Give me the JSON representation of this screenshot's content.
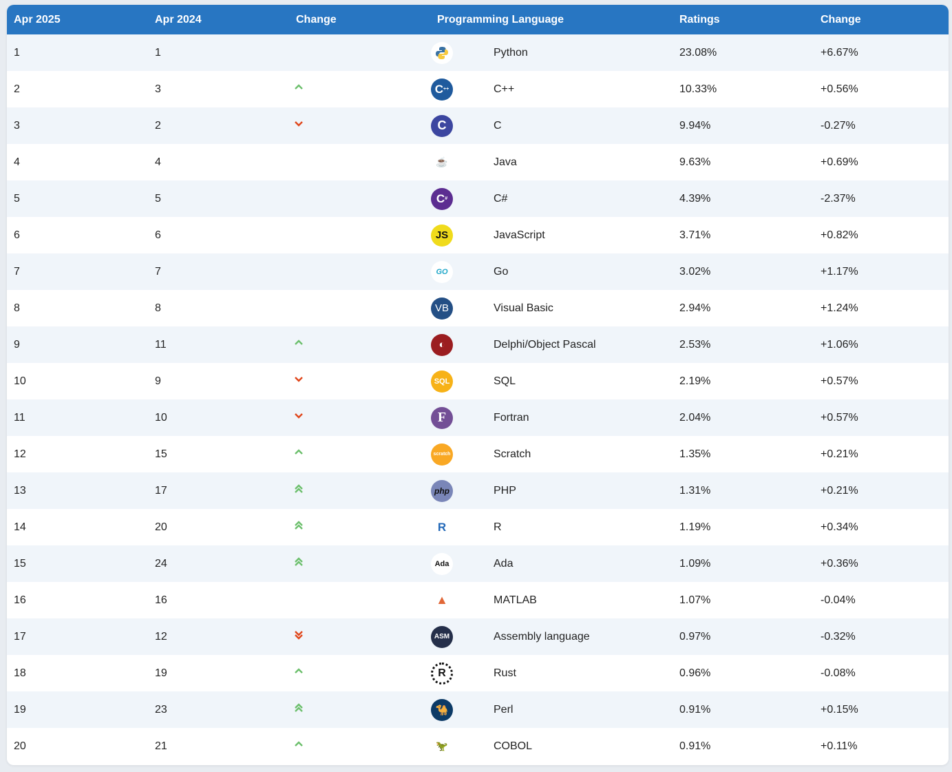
{
  "table": {
    "headers": [
      "Apr 2025",
      "Apr 2024",
      "Change",
      "Programming Language",
      "Ratings",
      "Change"
    ],
    "colors": {
      "header_bg": "#2876c2",
      "row_alt_bg": "#f0f5fa",
      "up_arrow": "#6cbf6c",
      "down_arrow": "#e0461a"
    },
    "rows": [
      {
        "rank_2025": "1",
        "rank_2024": "1",
        "trend": "none",
        "language": "Python",
        "icon": "python-icon",
        "rating": "23.08%",
        "change": "+6.67%"
      },
      {
        "rank_2025": "2",
        "rank_2024": "3",
        "trend": "up",
        "language": "C++",
        "icon": "cpp-icon",
        "rating": "10.33%",
        "change": "+0.56%"
      },
      {
        "rank_2025": "3",
        "rank_2024": "2",
        "trend": "down",
        "language": "C",
        "icon": "c-icon",
        "rating": "9.94%",
        "change": "-0.27%"
      },
      {
        "rank_2025": "4",
        "rank_2024": "4",
        "trend": "none",
        "language": "Java",
        "icon": "java-icon",
        "rating": "9.63%",
        "change": "+0.69%"
      },
      {
        "rank_2025": "5",
        "rank_2024": "5",
        "trend": "none",
        "language": "C#",
        "icon": "csharp-icon",
        "rating": "4.39%",
        "change": "-2.37%"
      },
      {
        "rank_2025": "6",
        "rank_2024": "6",
        "trend": "none",
        "language": "JavaScript",
        "icon": "javascript-icon",
        "rating": "3.71%",
        "change": "+0.82%"
      },
      {
        "rank_2025": "7",
        "rank_2024": "7",
        "trend": "none",
        "language": "Go",
        "icon": "go-icon",
        "rating": "3.02%",
        "change": "+1.17%"
      },
      {
        "rank_2025": "8",
        "rank_2024": "8",
        "trend": "none",
        "language": "Visual Basic",
        "icon": "visual-basic-icon",
        "rating": "2.94%",
        "change": "+1.24%"
      },
      {
        "rank_2025": "9",
        "rank_2024": "11",
        "trend": "up",
        "language": "Delphi/Object Pascal",
        "icon": "delphi-icon",
        "rating": "2.53%",
        "change": "+1.06%"
      },
      {
        "rank_2025": "10",
        "rank_2024": "9",
        "trend": "down",
        "language": "SQL",
        "icon": "sql-icon",
        "rating": "2.19%",
        "change": "+0.57%"
      },
      {
        "rank_2025": "11",
        "rank_2024": "10",
        "trend": "down",
        "language": "Fortran",
        "icon": "fortran-icon",
        "rating": "2.04%",
        "change": "+0.57%"
      },
      {
        "rank_2025": "12",
        "rank_2024": "15",
        "trend": "up",
        "language": "Scratch",
        "icon": "scratch-icon",
        "rating": "1.35%",
        "change": "+0.21%"
      },
      {
        "rank_2025": "13",
        "rank_2024": "17",
        "trend": "up2",
        "language": "PHP",
        "icon": "php-icon",
        "rating": "1.31%",
        "change": "+0.21%"
      },
      {
        "rank_2025": "14",
        "rank_2024": "20",
        "trend": "up2",
        "language": "R",
        "icon": "r-icon",
        "rating": "1.19%",
        "change": "+0.34%"
      },
      {
        "rank_2025": "15",
        "rank_2024": "24",
        "trend": "up2",
        "language": "Ada",
        "icon": "ada-icon",
        "rating": "1.09%",
        "change": "+0.36%"
      },
      {
        "rank_2025": "16",
        "rank_2024": "16",
        "trend": "none",
        "language": "MATLAB",
        "icon": "matlab-icon",
        "rating": "1.07%",
        "change": "-0.04%"
      },
      {
        "rank_2025": "17",
        "rank_2024": "12",
        "trend": "down2",
        "language": "Assembly language",
        "icon": "assembly-icon",
        "rating": "0.97%",
        "change": "-0.32%"
      },
      {
        "rank_2025": "18",
        "rank_2024": "19",
        "trend": "up",
        "language": "Rust",
        "icon": "rust-icon",
        "rating": "0.96%",
        "change": "-0.08%"
      },
      {
        "rank_2025": "19",
        "rank_2024": "23",
        "trend": "up2",
        "language": "Perl",
        "icon": "perl-icon",
        "rating": "0.91%",
        "change": "+0.15%"
      },
      {
        "rank_2025": "20",
        "rank_2024": "21",
        "trend": "up",
        "language": "COBOL",
        "icon": "cobol-icon",
        "rating": "0.91%",
        "change": "+0.11%"
      }
    ]
  }
}
